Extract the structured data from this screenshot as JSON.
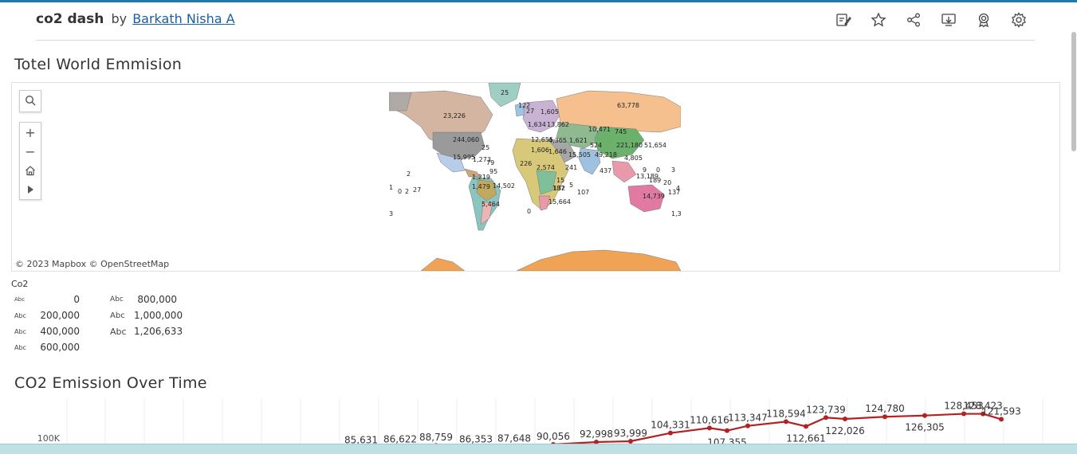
{
  "header": {
    "title": "co2 dash",
    "by": "by",
    "author": "Barkath Nisha A",
    "tools": [
      "edit-icon",
      "star-icon",
      "share-icon",
      "download-icon",
      "award-icon",
      "settings-icon"
    ]
  },
  "map_section": {
    "title": "Totel World Emmision",
    "attribution": "© 2023 Mapbox  © OpenStreetMap",
    "labels": [
      "25",
      "122",
      "27",
      "1,605",
      "1,634",
      "13,862",
      "23,226",
      "63,778",
      "10,471",
      "745",
      "244,060",
      "12,655",
      "4,365",
      "1,621",
      "221,180",
      "51,654",
      "25",
      "1,606",
      "1,646",
      "524",
      "15,995",
      "1,273",
      "15,505",
      "49,218",
      "4,805",
      "79",
      "226",
      "2,574",
      "241",
      "95",
      "437",
      "9",
      "0",
      "3",
      "2",
      "1,219",
      "137",
      "13,189",
      "189",
      "20",
      "1,479",
      "14,502",
      "15",
      "5",
      "187",
      "4",
      "1",
      "0",
      "2",
      "27",
      "132",
      "107",
      "5,464",
      "15,664",
      "14,739",
      "0",
      "1,35",
      "3"
    ]
  },
  "legend": {
    "title": "Co2",
    "abc": "Abc",
    "items": [
      "0",
      "200,000",
      "400,000",
      "600,000",
      "800,000",
      "1,000,000",
      "1,206,633"
    ]
  },
  "line_section": {
    "title": "CO2 Emission Over Time",
    "y_tick": "100K"
  },
  "chart_data": {
    "type": "line",
    "title": "CO2 Emission Over Time",
    "ylabel": "",
    "xlabel": "",
    "values": [
      85631,
      86622,
      88759,
      86353,
      87648,
      90056,
      92998,
      93999,
      104331,
      110616,
      107355,
      113347,
      118594,
      112661,
      123739,
      122026,
      124780,
      126305,
      128453,
      128423,
      121593
    ],
    "labels": [
      "85,631",
      "86,622",
      "88,759",
      "86,353",
      "87,648",
      "90,056",
      "92,998",
      "93,999",
      "104,331",
      "110,616",
      "107,355",
      "113,347",
      "118,594",
      "112,661",
      "123,739",
      "122,026",
      "124,780",
      "126,305",
      "128,453",
      "128,423",
      "121,593"
    ],
    "y_ticks": [
      "100K"
    ],
    "color": "#b22222"
  }
}
